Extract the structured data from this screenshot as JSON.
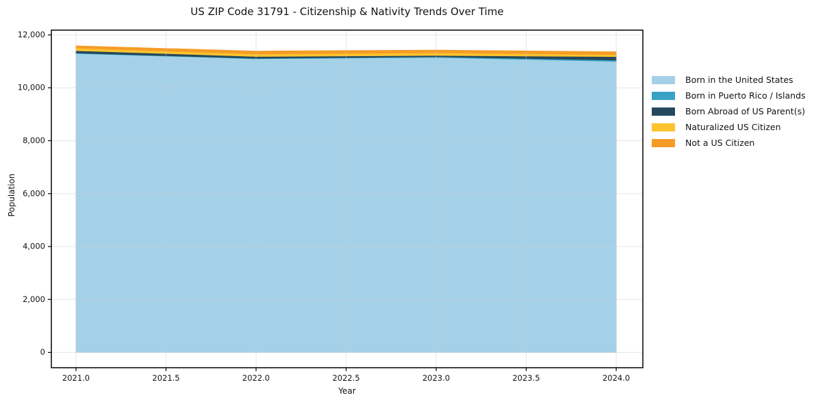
{
  "title": "US ZIP Code 31791 - Citizenship & Nativity Trends Over Time",
  "chart_data": {
    "type": "area",
    "stacked": true,
    "x": [
      2021,
      2022,
      2023,
      2024
    ],
    "series": [
      {
        "name": "Born in the United States",
        "color": "#a4d1e8",
        "values": [
          11300,
          11100,
          11150,
          11000
        ]
      },
      {
        "name": "Born in Puerto Rico / Islands",
        "color": "#38a2c4",
        "values": [
          15,
          15,
          25,
          50
        ]
      },
      {
        "name": "Born Abroad of US Parent(s)",
        "color": "#25485c",
        "values": [
          90,
          70,
          50,
          130
        ]
      },
      {
        "name": "Naturalized US Citizen",
        "color": "#fdc32f",
        "values": [
          100,
          95,
          100,
          75
        ]
      },
      {
        "name": "Not a US Citizen",
        "color": "#f59c27",
        "values": [
          80,
          105,
          100,
          105
        ]
      }
    ],
    "xlabel": "Year",
    "ylabel": "Population",
    "xticks": [
      2021.0,
      2021.5,
      2022.0,
      2022.5,
      2023.0,
      2023.5,
      2024.0
    ],
    "xtick_labels": [
      "2021.0",
      "2021.5",
      "2022.0",
      "2022.5",
      "2023.0",
      "2023.5",
      "2024.0"
    ],
    "yticks": [
      0,
      2000,
      4000,
      6000,
      8000,
      10000,
      12000
    ],
    "ytick_labels": [
      "0",
      "2,000",
      "4,000",
      "6,000",
      "8,000",
      "10,000",
      "12,000"
    ],
    "xlim": [
      2020.863,
      2024.148
    ],
    "ylim": [
      -580,
      12180
    ],
    "grid": true,
    "legend_position": "right",
    "frame_color": "#000000",
    "grid_color": "#cccccc",
    "text_color": "#111111"
  }
}
